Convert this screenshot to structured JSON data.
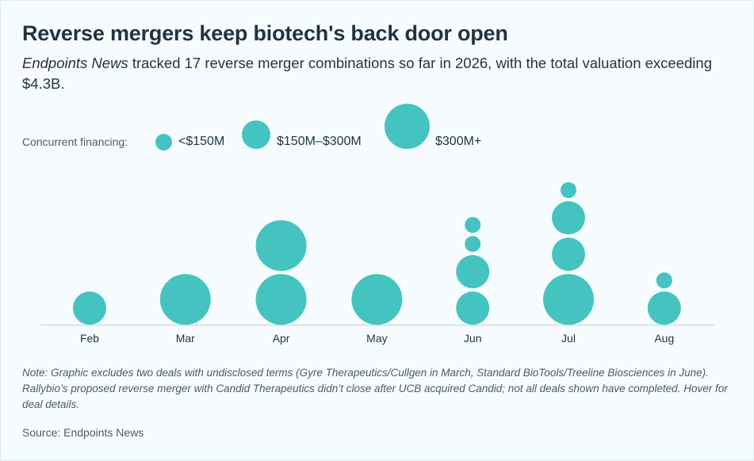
{
  "title": "Reverse mergers keep biotech's back door open",
  "subtitle": {
    "italic": "Endpoints News",
    "rest": " tracked 17 reverse merger combinations so far in 2026, with the total valuation exceeding $4.3B."
  },
  "legend": {
    "label": "Concurrent financing:",
    "items": [
      {
        "label": "<$150M",
        "size": "small"
      },
      {
        "label": "$150M–$300M",
        "size": "medium"
      },
      {
        "label": "$300M+",
        "size": "large"
      }
    ]
  },
  "colors": {
    "bubble": "#45c3c0",
    "axis": "#cfdde0"
  },
  "chart_data": {
    "type": "scatter",
    "categories": [
      "Feb",
      "Mar",
      "Apr",
      "May",
      "Jun",
      "Jul",
      "Aug"
    ],
    "size_classes": [
      "<$150M",
      "$150M–$300M",
      "$300M+"
    ],
    "deals": [
      {
        "month": "Feb",
        "stack": [
          "medium"
        ]
      },
      {
        "month": "Mar",
        "stack": [
          "large"
        ]
      },
      {
        "month": "Apr",
        "stack": [
          "large",
          "large"
        ]
      },
      {
        "month": "May",
        "stack": [
          "large"
        ]
      },
      {
        "month": "Jun",
        "stack": [
          "medium",
          "medium",
          "small",
          "small"
        ]
      },
      {
        "month": "Jul",
        "stack": [
          "large",
          "medium",
          "medium",
          "small"
        ]
      },
      {
        "month": "Aug",
        "stack": [
          "medium",
          "small"
        ]
      }
    ]
  },
  "note": "Note: Graphic excludes two deals with undisclosed terms (Gyre Therapeutics/Cullgen in March, Standard BioTools/Treeline Biosciences in June). Rallybio’s proposed reverse merger with Candid Therapeutics didn’t close after UCB acquired Candid; not all deals shown have completed. Hover for deal details.",
  "source": "Source: Endpoints News"
}
